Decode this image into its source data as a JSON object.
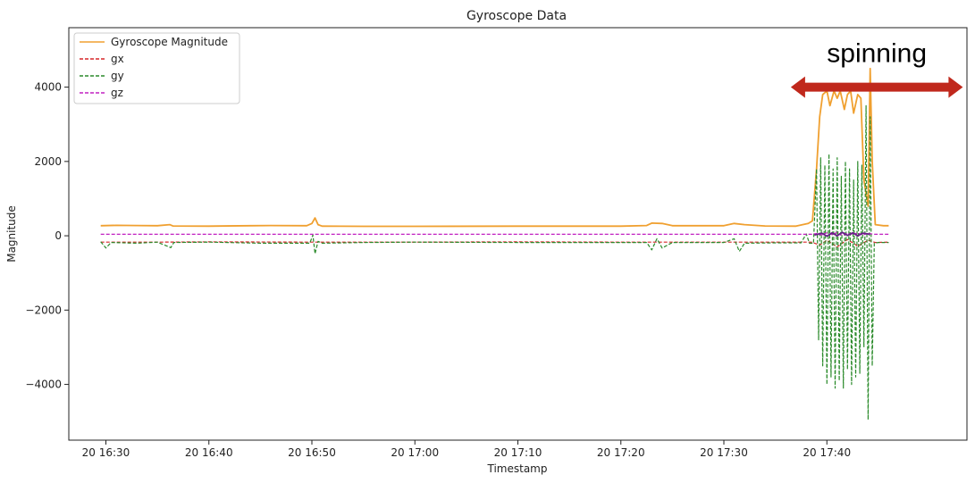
{
  "chart_data": {
    "type": "line",
    "title": "Gyroscope Data",
    "xlabel": "Timestamp",
    "ylabel": "Magnitude",
    "x_tick_labels": [
      "20 16:30",
      "20 16:40",
      "20 16:50",
      "20 17:00",
      "20 17:10",
      "20 17:20",
      "20 17:30",
      "20 17:40"
    ],
    "x_tick_minutes": [
      0,
      10,
      20,
      30,
      40,
      50,
      60,
      70
    ],
    "xlim_minutes": [
      -3.6,
      83.6
    ],
    "ylim": [
      -5500,
      5600
    ],
    "y_ticks": [
      -4000,
      -2000,
      0,
      2000,
      4000
    ],
    "y_tick_labels": [
      "−4000",
      "−2000",
      "0",
      "2000",
      "4000"
    ],
    "legend_placement": "top-left",
    "grid": false,
    "series": [
      {
        "name": "Gyroscope Magnitude",
        "color": "#f0a030",
        "style": "solid",
        "points": [
          [
            -0.5,
            270
          ],
          [
            1,
            280
          ],
          [
            3,
            275
          ],
          [
            5,
            270
          ],
          [
            6.2,
            300
          ],
          [
            6.5,
            265
          ],
          [
            10,
            260
          ],
          [
            14,
            270
          ],
          [
            16,
            275
          ],
          [
            19.5,
            270
          ],
          [
            20,
            330
          ],
          [
            20.3,
            480
          ],
          [
            20.6,
            300
          ],
          [
            21,
            260
          ],
          [
            25,
            255
          ],
          [
            30,
            255
          ],
          [
            40,
            258
          ],
          [
            50,
            260
          ],
          [
            52.5,
            275
          ],
          [
            53,
            340
          ],
          [
            54,
            330
          ],
          [
            55,
            270
          ],
          [
            60,
            270
          ],
          [
            61,
            330
          ],
          [
            62,
            300
          ],
          [
            64,
            265
          ],
          [
            67,
            260
          ],
          [
            68.2,
            330
          ],
          [
            68.6,
            400
          ],
          [
            69,
            1800
          ],
          [
            69.3,
            3200
          ],
          [
            69.6,
            3800
          ],
          [
            70,
            3900
          ],
          [
            70.3,
            3500
          ],
          [
            70.7,
            3900
          ],
          [
            71,
            3700
          ],
          [
            71.3,
            3900
          ],
          [
            71.7,
            3400
          ],
          [
            72,
            3800
          ],
          [
            72.3,
            3900
          ],
          [
            72.6,
            3300
          ],
          [
            73,
            3800
          ],
          [
            73.3,
            3700
          ],
          [
            73.6,
            1500
          ],
          [
            74,
            800
          ],
          [
            74.2,
            4500
          ],
          [
            74.4,
            2000
          ],
          [
            74.7,
            300
          ],
          [
            75.5,
            270
          ],
          [
            76,
            270
          ]
        ]
      },
      {
        "name": "gx",
        "color": "#d62728",
        "style": "dashed",
        "points": [
          [
            -0.5,
            -170
          ],
          [
            5,
            -170
          ],
          [
            10,
            -165
          ],
          [
            20,
            -170
          ],
          [
            30,
            -170
          ],
          [
            40,
            -165
          ],
          [
            50,
            -170
          ],
          [
            60,
            -170
          ],
          [
            68.5,
            -170
          ],
          [
            69.3,
            -250
          ],
          [
            70,
            -120
          ],
          [
            71,
            -300
          ],
          [
            72,
            -100
          ],
          [
            73,
            -280
          ],
          [
            74,
            -120
          ],
          [
            74.7,
            -180
          ],
          [
            76,
            -170
          ]
        ]
      },
      {
        "name": "gy",
        "color": "#2a8a2a",
        "style": "dashed",
        "points": [
          [
            -0.5,
            -160
          ],
          [
            0,
            -330
          ],
          [
            0.5,
            -180
          ],
          [
            3,
            -200
          ],
          [
            5,
            -170
          ],
          [
            6.3,
            -320
          ],
          [
            6.6,
            -180
          ],
          [
            10,
            -170
          ],
          [
            15,
            -200
          ],
          [
            19.8,
            -200
          ],
          [
            20.1,
            20
          ],
          [
            20.3,
            -480
          ],
          [
            20.6,
            -150
          ],
          [
            21,
            -200
          ],
          [
            25,
            -180
          ],
          [
            30,
            -170
          ],
          [
            40,
            -180
          ],
          [
            50,
            -180
          ],
          [
            52.5,
            -180
          ],
          [
            53,
            -380
          ],
          [
            53.5,
            -80
          ],
          [
            54,
            -330
          ],
          [
            55,
            -180
          ],
          [
            60,
            -180
          ],
          [
            61,
            -80
          ],
          [
            61.5,
            -420
          ],
          [
            62,
            -200
          ],
          [
            65,
            -190
          ],
          [
            67.5,
            -190
          ],
          [
            68,
            50
          ],
          [
            68.3,
            -200
          ],
          [
            68.7,
            -200
          ],
          [
            69,
            1800
          ],
          [
            69.2,
            -2800
          ],
          [
            69.4,
            2100
          ],
          [
            69.6,
            -3500
          ],
          [
            69.8,
            1900
          ],
          [
            70,
            -4000
          ],
          [
            70.2,
            2200
          ],
          [
            70.4,
            -3800
          ],
          [
            70.6,
            1800
          ],
          [
            70.8,
            -4100
          ],
          [
            71,
            2100
          ],
          [
            71.2,
            -3900
          ],
          [
            71.4,
            1600
          ],
          [
            71.6,
            -4100
          ],
          [
            71.8,
            2000
          ],
          [
            72,
            -3600
          ],
          [
            72.2,
            1800
          ],
          [
            72.4,
            -4000
          ],
          [
            72.6,
            1500
          ],
          [
            72.8,
            -3800
          ],
          [
            73,
            2000
          ],
          [
            73.2,
            -3700
          ],
          [
            73.4,
            1900
          ],
          [
            73.6,
            -3000
          ],
          [
            73.8,
            3500
          ],
          [
            74,
            -4950
          ],
          [
            74.2,
            3200
          ],
          [
            74.4,
            -3500
          ],
          [
            74.6,
            -200
          ],
          [
            75,
            -180
          ],
          [
            76,
            -180
          ]
        ]
      },
      {
        "name": "gz",
        "color": "#c020c0",
        "style": "dashed",
        "points": [
          [
            -0.5,
            40
          ],
          [
            10,
            40
          ],
          [
            20,
            40
          ],
          [
            30,
            40
          ],
          [
            40,
            40
          ],
          [
            50,
            40
          ],
          [
            60,
            40
          ],
          [
            68.5,
            40
          ],
          [
            69,
            60
          ],
          [
            69.5,
            20
          ],
          [
            70,
            80
          ],
          [
            70.5,
            30
          ],
          [
            71,
            90
          ],
          [
            71.5,
            10
          ],
          [
            72,
            70
          ],
          [
            72.5,
            30
          ],
          [
            73,
            80
          ],
          [
            73.5,
            20
          ],
          [
            74,
            70
          ],
          [
            74.5,
            40
          ],
          [
            76,
            40
          ]
        ]
      },
      {
        "name": "",
        "color": "#6a1e8a",
        "style": "solid",
        "points": [
          [
            68.8,
            20
          ],
          [
            69.5,
            70
          ],
          [
            70,
            -10
          ],
          [
            70.5,
            80
          ],
          [
            71,
            0
          ],
          [
            71.5,
            90
          ],
          [
            72,
            10
          ],
          [
            72.5,
            80
          ],
          [
            73,
            0
          ],
          [
            73.5,
            70
          ],
          [
            74.2,
            40
          ]
        ]
      }
    ],
    "annotations": [
      {
        "text": "spinning",
        "color": "#c0281c",
        "type": "double-arrow",
        "x_range_minutes": [
          66.5,
          83.2
        ],
        "y": 4000
      }
    ]
  }
}
